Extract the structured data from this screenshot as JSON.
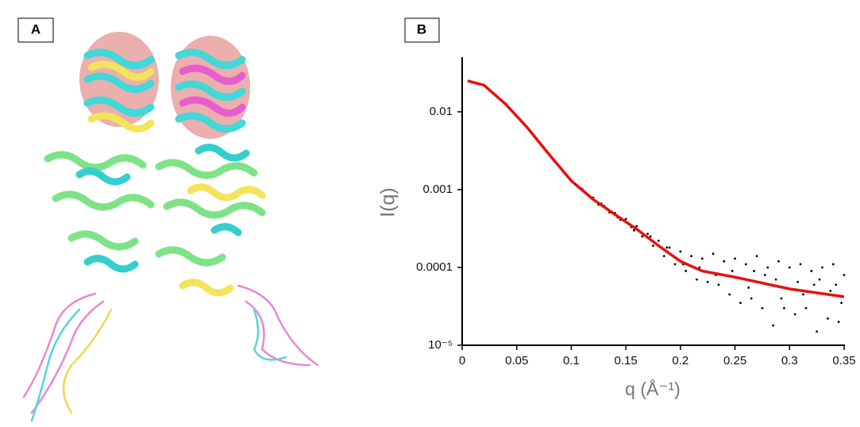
{
  "panel_labels": [
    "A",
    "B"
  ],
  "chart_data": {
    "type": "scatter",
    "x_label": "q (Å⁻¹)",
    "y_label": "I(q)",
    "log_y": true,
    "xlim": [
      0,
      0.35
    ],
    "xticks": [
      0,
      0.05,
      0.1,
      0.15,
      0.2,
      0.25,
      0.3,
      0.35
    ],
    "ylim": [
      1e-05,
      0.047
    ],
    "yticks": [
      {
        "value": 1e-05,
        "label": "10⁻⁵"
      },
      0.0001,
      0.001,
      0.01
    ],
    "series": [
      {
        "type": "scatter",
        "color": "#000000",
        "x": [
          0.11,
          0.115,
          0.12,
          0.125,
          0.13,
          0.135,
          0.14,
          0.145,
          0.15,
          0.155,
          0.16,
          0.165,
          0.17,
          0.175,
          0.18,
          0.185,
          0.19,
          0.195,
          0.2,
          0.205,
          0.21,
          0.215,
          0.22,
          0.225,
          0.23,
          0.235,
          0.24,
          0.245,
          0.25,
          0.255,
          0.26,
          0.265,
          0.27,
          0.275,
          0.28,
          0.285,
          0.29,
          0.295,
          0.3,
          0.305,
          0.31,
          0.315,
          0.32,
          0.325,
          0.33,
          0.335,
          0.34,
          0.345,
          0.35,
          0.1125,
          0.1275,
          0.1425,
          0.1575,
          0.1725,
          0.1875,
          0.2025,
          0.2175,
          0.2325,
          0.2475,
          0.2625,
          0.2775,
          0.2925,
          0.3075,
          0.3225,
          0.3375,
          0.3475,
          0.2675,
          0.2875,
          0.3125,
          0.3275,
          0.3425
        ],
        "values": [
          0.00102,
          0.00085,
          0.00079,
          0.00064,
          0.00062,
          0.00051,
          0.0005,
          0.00041,
          0.00042,
          0.00033,
          0.00034,
          0.00025,
          0.00027,
          0.00019,
          0.00022,
          0.00014,
          0.00018,
          0.00011,
          0.00016,
          9e-05,
          0.00014,
          7e-05,
          0.00013,
          6.5e-05,
          0.00015,
          6e-05,
          0.00012,
          4.5e-05,
          0.00013,
          3.5e-05,
          0.00011,
          4e-05,
          0.00014,
          3e-05,
          0.0001,
          1.8e-05,
          0.00012,
          3e-05,
          0.0001,
          2.5e-05,
          0.00011,
          3e-05,
          9e-05,
          1.5e-05,
          0.0001,
          2.2e-05,
          0.00011,
          2e-05,
          8e-05,
          0.00093,
          0.00066,
          0.00044,
          0.0003,
          0.00025,
          0.00018,
          0.00011,
          0.0001,
          8e-05,
          9e-05,
          5.5e-05,
          8e-05,
          4e-05,
          6.5e-05,
          6e-05,
          5e-05,
          3.5e-05,
          9e-05,
          7e-05,
          4.5e-05,
          7e-05,
          6e-05
        ]
      },
      {
        "type": "line",
        "color": "#e8100c",
        "x": [
          0.005,
          0.02,
          0.04,
          0.06,
          0.08,
          0.1,
          0.12,
          0.14,
          0.16,
          0.18,
          0.2,
          0.22,
          0.25,
          0.3,
          0.35
        ],
        "values": [
          0.025,
          0.022,
          0.0125,
          0.0062,
          0.0028,
          0.0013,
          0.00075,
          0.00048,
          0.00031,
          0.00019,
          0.00012,
          9e-05,
          7.5e-05,
          5.3e-05,
          4.2e-05
        ]
      }
    ]
  }
}
